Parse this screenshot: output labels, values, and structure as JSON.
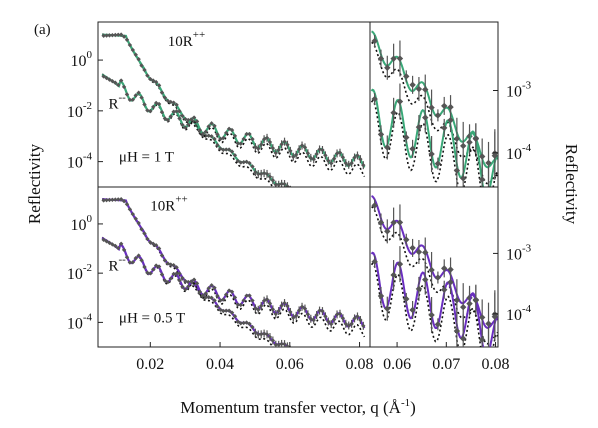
{
  "chart_data": {
    "type": "line",
    "figure_label": "(a)",
    "xlabel_main": "Momentum transfer vector, q (",
    "xlabel_unit": "Å",
    "xlabel_exp": "-1",
    "xlabel_close": ")",
    "ylabel_left": "Reflectivity",
    "ylabel_right": "Reflectivity",
    "y_scale": "log",
    "colors": {
      "top": "#3aa878",
      "bottom": "#6a2fc0",
      "data": "#555555",
      "model": "#111111"
    },
    "panels": [
      {
        "id": "top-left",
        "xlim": [
          0.005,
          0.083
        ],
        "ylim_log10": [
          -5.0,
          1.5
        ],
        "x_ticks": [
          0.02,
          0.04,
          0.06,
          0.08
        ],
        "y_ticks": [
          {
            "exp": 0,
            "base": "10",
            "sup": "0"
          },
          {
            "exp": -2,
            "base": "10",
            "sup": "-2"
          },
          {
            "exp": -4,
            "base": "10",
            "sup": "-4"
          }
        ],
        "annotations": [
          {
            "base": "10R",
            "sup": "++",
            "q": 0.025,
            "log10": 0.55
          },
          {
            "base": "R",
            "sup": "--",
            "q": 0.008,
            "log10": -1.9
          },
          {
            "text": "μH = 1 T",
            "q": 0.011,
            "log10": -4.0
          }
        ]
      },
      {
        "id": "top-right",
        "xlim": [
          0.0545,
          0.0805
        ],
        "ylim_log10": [
          -4.55,
          -1.9
        ],
        "x_ticks": [
          0.06,
          0.07,
          0.08
        ],
        "y_ticks": [
          {
            "exp": -3,
            "base": "10",
            "sup": "-3"
          },
          {
            "exp": -4,
            "base": "10",
            "sup": "-4"
          }
        ]
      },
      {
        "id": "bottom-left",
        "xlim": [
          0.005,
          0.083
        ],
        "ylim_log10": [
          -5.0,
          1.5
        ],
        "x_ticks": [
          0.02,
          0.04,
          0.06,
          0.08
        ],
        "x_tick_labels": [
          "0.02",
          "0.04",
          "0.06",
          "0.08"
        ],
        "y_ticks": [
          {
            "exp": 0,
            "base": "10",
            "sup": "0"
          },
          {
            "exp": -2,
            "base": "10",
            "sup": "-2"
          },
          {
            "exp": -4,
            "base": "10",
            "sup": "-4"
          }
        ],
        "annotations": [
          {
            "base": "10R",
            "sup": "++",
            "q": 0.02,
            "log10": 0.55
          },
          {
            "base": "R",
            "sup": "--",
            "q": 0.008,
            "log10": -1.9
          },
          {
            "text": "μH = 0.5 T",
            "q": 0.011,
            "log10": -4.0
          }
        ]
      },
      {
        "id": "bottom-right",
        "xlim": [
          0.0545,
          0.0805
        ],
        "ylim_log10": [
          -4.55,
          -1.9
        ],
        "x_ticks": [
          0.06,
          0.07,
          0.08
        ],
        "x_tick_labels": [
          "0.06",
          "0.07",
          "0.08"
        ],
        "y_ticks": [
          {
            "exp": -3,
            "base": "10",
            "sup": "-3"
          },
          {
            "exp": -4,
            "base": "10",
            "sup": "-4"
          }
        ]
      }
    ]
  }
}
